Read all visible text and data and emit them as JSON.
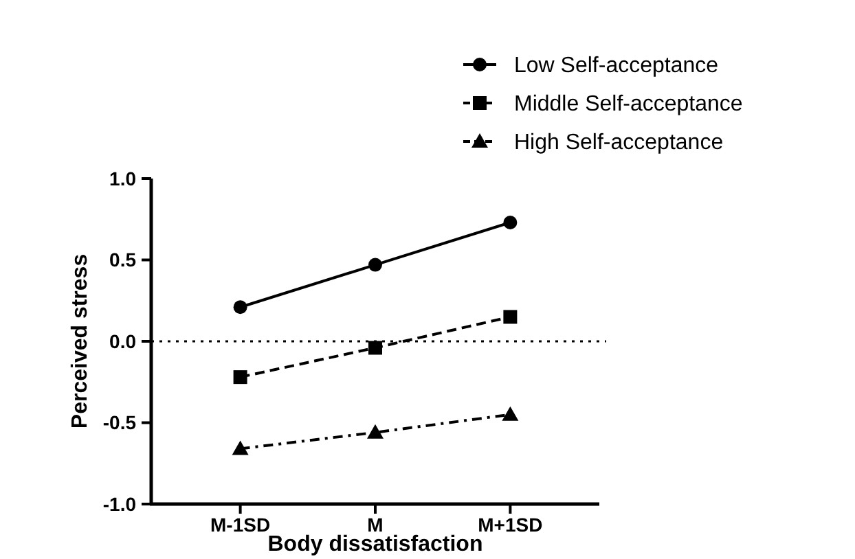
{
  "chart_data": {
    "type": "line",
    "xlabel": "Body dissatisfaction",
    "ylabel": "Perceived stress",
    "categories": [
      "M-1SD",
      "M",
      "M+1SD"
    ],
    "series": [
      {
        "name": "Low Self-acceptance",
        "color": "#000000",
        "values": [
          0.21,
          0.47,
          0.73
        ],
        "marker": "circle",
        "line_style": "solid"
      },
      {
        "name": "Middle Self-acceptance",
        "color": "#000000",
        "values": [
          -0.22,
          -0.04,
          0.15
        ],
        "marker": "square",
        "line_style": "dashed"
      },
      {
        "name": "High Self-acceptance",
        "color": "#000000",
        "values": [
          -0.66,
          -0.56,
          -0.45
        ],
        "marker": "triangle",
        "line_style": "dashed"
      }
    ],
    "ylim": [
      -1,
      1
    ],
    "yticks": [
      {
        "value": -1,
        "label": "-1.0"
      },
      {
        "value": -0.5,
        "label": "-0.5"
      },
      {
        "value": 0,
        "label": "0.0"
      },
      {
        "value": 0.5,
        "label": "0.5"
      },
      {
        "value": 1,
        "label": "1.0"
      }
    ],
    "ref_lines": [
      {
        "axis": "y",
        "value": 0,
        "line_style": "dotted"
      }
    ],
    "grid": false,
    "legend": "top right"
  }
}
